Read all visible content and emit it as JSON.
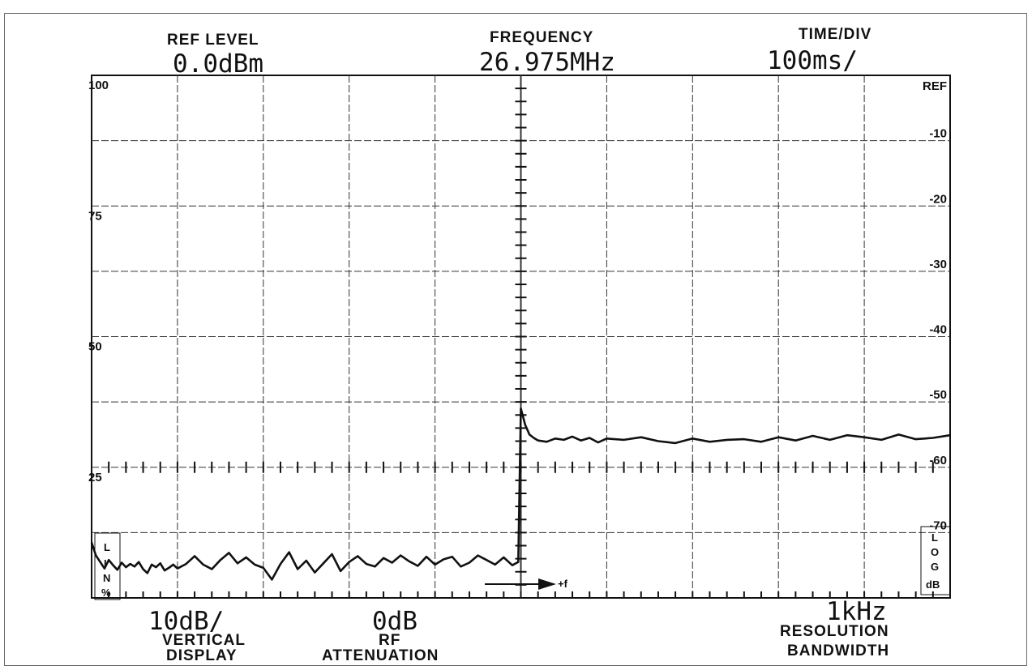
{
  "header": {
    "ref_level_label": "REF LEVEL",
    "ref_level_value": "0.0dBm",
    "frequency_label": "FREQUENCY",
    "frequency_value": "26.975MHz",
    "time_div_label": "TIME/DIV",
    "time_div_value": "100ms/"
  },
  "footer": {
    "vertical_value": "10dB/",
    "vertical_label_1": "VERTICAL",
    "vertical_label_2": "DISPLAY",
    "rf_value": "0dB",
    "rf_label_1": "RF",
    "rf_label_2": "ATTENUATION",
    "rbw_value": "1kHz",
    "rbw_label_1": "RESOLUTION",
    "rbw_label_2": "BANDWIDTH",
    "freq_arrow_label": "+f"
  },
  "left_box_letters": [
    "L",
    "I",
    "N",
    "%"
  ],
  "right_box_letters": [
    "L",
    "O",
    "G",
    "dB"
  ],
  "colors": {
    "trace": "#111111",
    "grid": "#333333",
    "paper": "#ffffff"
  },
  "chart_data": {
    "type": "line",
    "x_divisions": 10,
    "y_divisions": 8,
    "left_axis": {
      "ticks": [
        100,
        75,
        50,
        25
      ]
    },
    "right_axis": {
      "ticks": [
        "REF",
        "-10",
        "-20",
        "-30",
        "-40",
        "-50",
        "-60",
        "-70"
      ],
      "unit": "dB",
      "ylim": [
        -80,
        0
      ]
    },
    "series": [
      {
        "x": [
          0,
          0.05,
          0.1,
          0.15,
          0.2,
          0.25,
          0.3,
          0.35,
          0.4,
          0.45,
          0.5,
          0.55,
          0.6,
          0.65,
          0.7,
          0.75,
          0.8,
          0.85,
          0.9,
          0.95,
          1.0,
          1.1,
          1.2,
          1.3,
          1.4,
          1.5,
          1.6,
          1.7,
          1.8,
          1.9,
          2.0,
          2.1,
          2.2,
          2.3,
          2.4,
          2.5,
          2.6,
          2.7,
          2.8,
          2.9,
          3.0,
          3.1,
          3.2,
          3.3,
          3.4,
          3.5,
          3.6,
          3.7,
          3.8,
          3.9,
          4.0,
          4.1,
          4.2,
          4.3,
          4.4,
          4.5,
          4.6,
          4.7,
          4.8,
          4.9,
          4.97,
          5.0,
          5.05,
          5.1,
          5.15,
          5.2,
          5.3,
          5.4,
          5.5,
          5.6,
          5.7,
          5.8,
          5.9,
          6.0,
          6.2,
          6.4,
          6.6,
          6.8,
          7.0,
          7.2,
          7.4,
          7.6,
          7.8,
          8.0,
          8.2,
          8.4,
          8.6,
          8.8,
          9.0,
          9.2,
          9.4,
          9.6,
          9.8,
          10.0
        ],
        "y": [
          -71.5,
          -73.5,
          -74.5,
          -75.5,
          -74.2,
          -75.0,
          -75.7,
          -74.6,
          -75.3,
          -74.8,
          -75.2,
          -74.5,
          -75.6,
          -76.2,
          -74.9,
          -75.3,
          -74.7,
          -75.8,
          -75.4,
          -74.9,
          -75.5,
          -74.8,
          -73.6,
          -74.9,
          -75.6,
          -74.2,
          -73.1,
          -74.7,
          -73.8,
          -74.9,
          -75.4,
          -77.2,
          -74.8,
          -73.0,
          -75.6,
          -74.3,
          -76.1,
          -74.7,
          -73.3,
          -75.9,
          -74.5,
          -73.6,
          -74.8,
          -75.2,
          -73.9,
          -74.6,
          -73.5,
          -74.4,
          -75.1,
          -73.7,
          -74.9,
          -74.1,
          -73.7,
          -75.2,
          -74.6,
          -73.5,
          -74.2,
          -74.9,
          -73.8,
          -75.0,
          -74.5,
          -51.0,
          -53.5,
          -55.0,
          -55.5,
          -55.9,
          -56.1,
          -55.6,
          -55.8,
          -55.3,
          -55.9,
          -55.5,
          -56.2,
          -55.6,
          -55.8,
          -55.4,
          -56.0,
          -56.3,
          -55.6,
          -56.1,
          -55.8,
          -55.7,
          -56.1,
          -55.4,
          -55.9,
          -55.2,
          -55.8,
          -55.1,
          -55.4,
          -55.8,
          -55.0,
          -55.7,
          -55.5,
          -55.1
        ]
      }
    ]
  }
}
